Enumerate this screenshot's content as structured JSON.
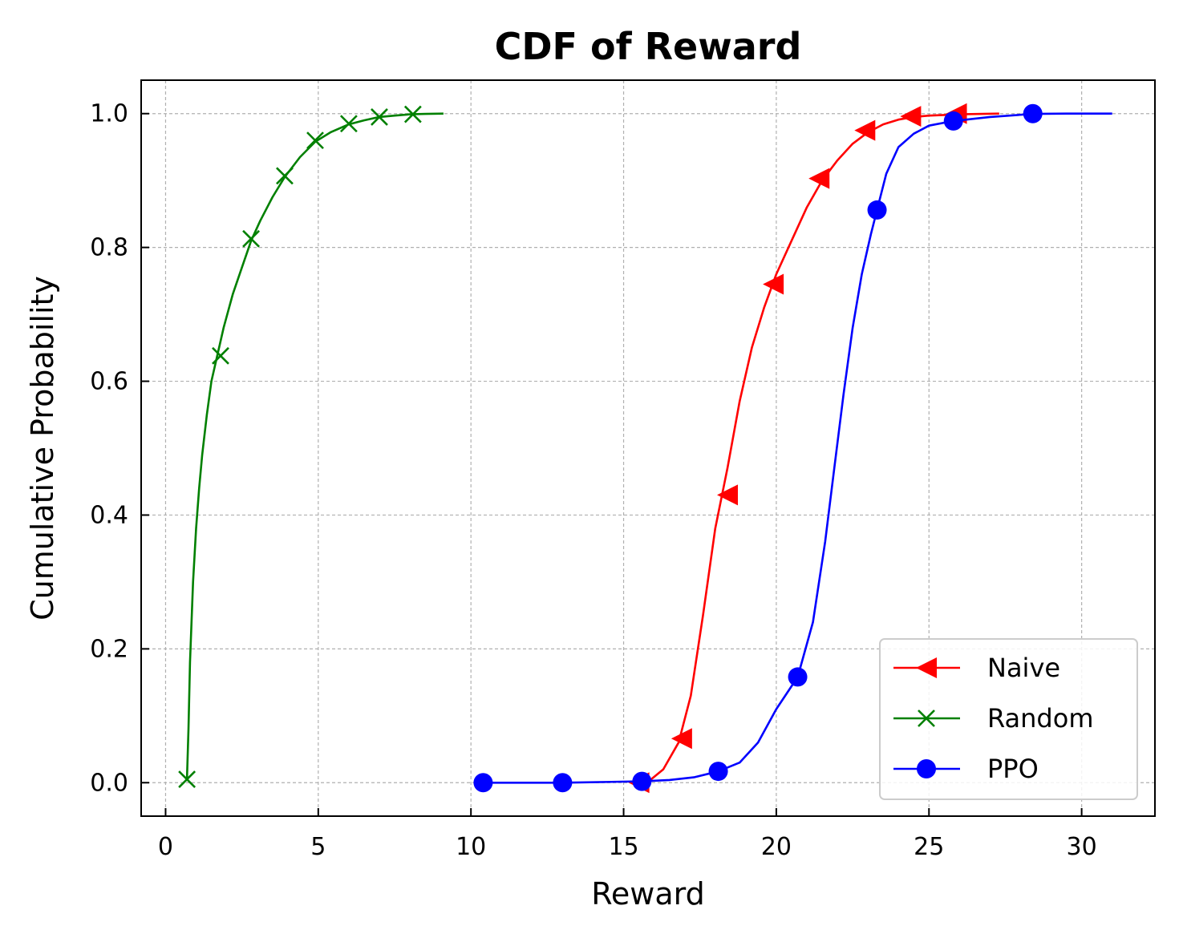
{
  "chart_data": {
    "type": "line",
    "title": "CDF of Reward",
    "xlabel": "Reward",
    "ylabel": "Cumulative Probability",
    "xlim": [
      -0.8,
      32.4
    ],
    "ylim": [
      -0.05,
      1.05
    ],
    "xticks": [
      0,
      5,
      10,
      15,
      20,
      25,
      30
    ],
    "xtick_labels": [
      "0",
      "5",
      "10",
      "15",
      "20",
      "25",
      "30"
    ],
    "yticks": [
      0.0,
      0.2,
      0.4,
      0.6,
      0.8,
      1.0
    ],
    "ytick_labels": [
      "0.0",
      "0.2",
      "0.4",
      "0.6",
      "0.8",
      "1.0"
    ],
    "grid": true,
    "legend_position": "lower-right",
    "series": [
      {
        "name": "Naive",
        "color": "#ff0000",
        "marker": "triangle-left",
        "curve": {
          "x": [
            15.5,
            15.9,
            16.3,
            16.8,
            17.2,
            17.6,
            18.0,
            18.4,
            18.8,
            19.2,
            19.6,
            20.0,
            20.5,
            21.0,
            21.5,
            22.0,
            22.5,
            23.0,
            23.5,
            24.0,
            24.5,
            25.0,
            25.5,
            26.0,
            27.3
          ],
          "y": [
            0.0,
            0.005,
            0.02,
            0.06,
            0.13,
            0.25,
            0.38,
            0.47,
            0.57,
            0.65,
            0.71,
            0.76,
            0.81,
            0.86,
            0.9,
            0.93,
            0.955,
            0.972,
            0.984,
            0.991,
            0.995,
            0.997,
            0.998,
            0.999,
            1.0
          ]
        },
        "markers": {
          "x": [
            15.5,
            16.9,
            18.4,
            19.9,
            21.4,
            22.9,
            24.4,
            25.9
          ],
          "y": [
            0.0,
            0.066,
            0.43,
            0.745,
            0.903,
            0.975,
            0.996,
            1.0
          ]
        }
      },
      {
        "name": "Random",
        "color": "#008000",
        "marker": "x",
        "curve": {
          "x": [
            0.7,
            0.75,
            0.8,
            0.9,
            1.0,
            1.1,
            1.2,
            1.35,
            1.5,
            1.7,
            1.9,
            2.2,
            2.5,
            2.8,
            3.1,
            3.5,
            3.9,
            4.4,
            4.9,
            5.4,
            6.0,
            6.5,
            7.0,
            7.5,
            8.0,
            8.5,
            9.1
          ],
          "y": [
            0.005,
            0.08,
            0.18,
            0.3,
            0.38,
            0.44,
            0.49,
            0.55,
            0.6,
            0.64,
            0.68,
            0.73,
            0.77,
            0.81,
            0.84,
            0.875,
            0.905,
            0.935,
            0.958,
            0.972,
            0.984,
            0.99,
            0.995,
            0.997,
            0.999,
            0.9995,
            1.0
          ]
        },
        "markers": {
          "x": [
            0.7,
            1.8,
            2.8,
            3.9,
            4.9,
            6.0,
            7.0,
            8.1
          ],
          "y": [
            0.005,
            0.638,
            0.813,
            0.907,
            0.96,
            0.985,
            0.995,
            0.999
          ]
        }
      },
      {
        "name": "PPO",
        "color": "#0000ff",
        "marker": "circle",
        "curve": {
          "x": [
            10.4,
            13.0,
            15.6,
            16.5,
            17.3,
            18.1,
            18.8,
            19.4,
            20.0,
            20.7,
            21.2,
            21.6,
            21.9,
            22.2,
            22.5,
            22.8,
            23.1,
            23.3,
            23.6,
            24.0,
            24.5,
            25.0,
            25.8,
            27.0,
            28.4,
            29.5,
            31.0
          ],
          "y": [
            0.0,
            0.0,
            0.002,
            0.004,
            0.008,
            0.017,
            0.03,
            0.06,
            0.11,
            0.158,
            0.24,
            0.36,
            0.47,
            0.58,
            0.68,
            0.76,
            0.82,
            0.856,
            0.91,
            0.95,
            0.97,
            0.982,
            0.989,
            0.995,
            0.9995,
            1.0,
            1.0
          ]
        },
        "markers": {
          "x": [
            10.4,
            13.0,
            15.6,
            18.1,
            20.7,
            23.3,
            25.8,
            28.4
          ],
          "y": [
            0.0,
            0.0,
            0.002,
            0.017,
            0.158,
            0.856,
            0.989,
            1.0
          ]
        }
      }
    ]
  }
}
